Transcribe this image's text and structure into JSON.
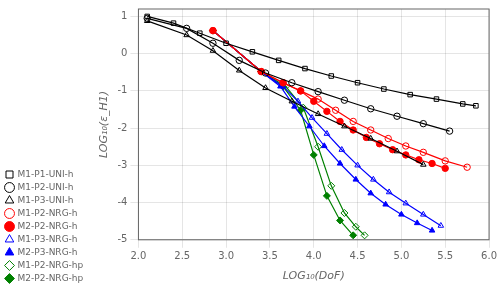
{
  "chart_data": {
    "type": "line",
    "xlabel": "LOG₁₀(DoF)",
    "ylabel": "LOG₁₀(ε_H1)",
    "xlim": [
      2,
      6
    ],
    "ylim": [
      -5,
      1.2
    ],
    "xticks": [
      {
        "value": 2,
        "label": "2.0"
      },
      {
        "value": 2.5,
        "label": "2.5"
      },
      {
        "value": 3,
        "label": "3.0"
      },
      {
        "value": 3.5,
        "label": "3.5"
      },
      {
        "value": 4,
        "label": "4.0"
      },
      {
        "value": 4.5,
        "label": "4.5"
      },
      {
        "value": 5,
        "label": "5.0"
      },
      {
        "value": 5.5,
        "label": "5.5"
      },
      {
        "value": 6,
        "label": "6.0"
      }
    ],
    "yticks": [
      -5,
      -4,
      -3,
      -2,
      -1,
      0,
      1
    ],
    "grid": true,
    "legend": "lower left",
    "series": [
      {
        "name": "M1-P1-UNI-h",
        "color": "black",
        "marker": "square_open",
        "line_style": "solid",
        "x": [
          2.1,
          2.4,
          2.7,
          3.0,
          3.3,
          3.6,
          3.9,
          4.2,
          4.5,
          4.8,
          5.1,
          5.4,
          5.7,
          5.85
        ],
        "values": [
          1.0,
          0.82,
          0.55,
          0.28,
          0.05,
          -0.18,
          -0.4,
          -0.6,
          -0.78,
          -0.95,
          -1.1,
          -1.22,
          -1.35,
          -1.4
        ]
      },
      {
        "name": "M1-P2-UNI-h",
        "color": "black",
        "marker": "circle_open",
        "line_style": "solid",
        "x": [
          2.1,
          2.55,
          2.85,
          3.15,
          3.45,
          3.75,
          4.05,
          4.35,
          4.65,
          4.95,
          5.25,
          5.55
        ],
        "values": [
          0.95,
          0.68,
          0.28,
          -0.18,
          -0.52,
          -0.78,
          -1.02,
          -1.25,
          -1.48,
          -1.68,
          -1.88,
          -2.08
        ]
      },
      {
        "name": "M1-P3-UNI-h",
        "color": "black",
        "marker": "triangle_open",
        "line_style": "solid",
        "x": [
          2.1,
          2.55,
          2.85,
          3.15,
          3.45,
          3.75,
          4.05,
          4.35,
          4.65,
          4.95,
          5.25
        ],
        "values": [
          0.88,
          0.5,
          0.08,
          -0.45,
          -0.92,
          -1.28,
          -1.62,
          -1.95,
          -2.28,
          -2.62,
          -2.98
        ]
      },
      {
        "name": "M1-P2-NRG-h",
        "color": "red",
        "marker": "circle_open",
        "line_style": "solid",
        "x": [
          2.85,
          3.4,
          3.65,
          3.85,
          4.05,
          4.25,
          4.45,
          4.65,
          4.85,
          5.05,
          5.25,
          5.5,
          5.75
        ],
        "values": [
          0.62,
          -0.48,
          -0.78,
          -1.0,
          -1.22,
          -1.52,
          -1.82,
          -2.05,
          -2.28,
          -2.48,
          -2.65,
          -2.88,
          -3.05
        ]
      },
      {
        "name": "M2-P2-NRG-h",
        "color": "red",
        "marker": "circle_filled",
        "line_style": "solid",
        "x": [
          2.85,
          3.4,
          3.65,
          3.85,
          4.0,
          4.15,
          4.3,
          4.45,
          4.6,
          4.75,
          4.9,
          5.05,
          5.2,
          5.35,
          5.5
        ],
        "values": [
          0.62,
          -0.48,
          -0.78,
          -1.0,
          -1.28,
          -1.55,
          -1.82,
          -2.05,
          -2.25,
          -2.42,
          -2.58,
          -2.72,
          -2.85,
          -2.95,
          -3.08
        ]
      },
      {
        "name": "M1-P3-NRG-h",
        "color": "blue",
        "marker": "triangle_open",
        "line_style": "solid",
        "x": [
          2.85,
          3.4,
          3.65,
          3.82,
          3.98,
          4.15,
          4.32,
          4.5,
          4.68,
          4.86,
          5.05,
          5.25,
          5.45
        ],
        "values": [
          0.62,
          -0.48,
          -0.88,
          -1.28,
          -1.72,
          -2.15,
          -2.58,
          -3.0,
          -3.38,
          -3.72,
          -4.02,
          -4.32,
          -4.62
        ]
      },
      {
        "name": "M2-P3-NRG-h",
        "color": "blue",
        "marker": "triangle_filled",
        "line_style": "solid",
        "x": [
          2.85,
          3.4,
          3.62,
          3.78,
          3.95,
          4.12,
          4.3,
          4.48,
          4.65,
          4.82,
          5.0,
          5.18,
          5.35
        ],
        "values": [
          0.62,
          -0.48,
          -0.88,
          -1.42,
          -1.95,
          -2.48,
          -2.95,
          -3.38,
          -3.75,
          -4.05,
          -4.32,
          -4.55,
          -4.75
        ]
      },
      {
        "name": "M1-P2-NRG-hp",
        "color": "green",
        "marker": "diamond_open",
        "line_style": "solid",
        "x": [
          2.85,
          3.4,
          3.68,
          3.88,
          4.05,
          4.2,
          4.35,
          4.48,
          4.58
        ],
        "values": [
          0.62,
          -0.48,
          -0.88,
          -1.45,
          -2.5,
          -3.55,
          -4.28,
          -4.65,
          -4.88
        ]
      },
      {
        "name": "M2-P2-NRG-hp",
        "color": "green",
        "marker": "diamond_filled",
        "line_style": "solid",
        "x": [
          2.85,
          3.4,
          3.65,
          3.85,
          4.0,
          4.15,
          4.3,
          4.45
        ],
        "values": [
          0.62,
          -0.48,
          -0.88,
          -1.52,
          -2.72,
          -3.82,
          -4.48,
          -4.88
        ]
      }
    ]
  }
}
